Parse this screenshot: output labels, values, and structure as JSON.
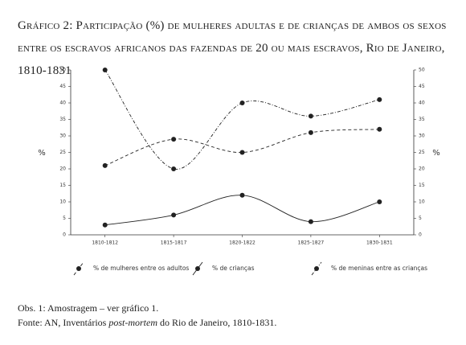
{
  "chart_data": {
    "type": "line",
    "title": "Gráfico 2: Participação (%) de mulheres adultas e de crianças de ambos os sexos entre os escravos africanos das fazendas de 20 ou mais escravos, Rio de Janeiro, 1810-1831",
    "ylabel": "%",
    "y2label": "%",
    "categories": [
      "1810-1812",
      "1815-1817",
      "1820-1822",
      "1825-1827",
      "1830-1831"
    ],
    "series": [
      {
        "name": "% de mulheres entre os adultos",
        "color": "#222222",
        "dash": "4 3",
        "values": [
          21,
          29,
          25,
          31,
          32
        ]
      },
      {
        "name": "% de crianças",
        "color": "#222222",
        "dash": "none",
        "values": [
          3,
          6,
          12,
          4,
          10
        ]
      },
      {
        "name": "% de meninas entre as crianças",
        "color": "#222222",
        "dash": "4 2 1 2",
        "values": [
          50,
          20,
          40,
          36,
          41
        ]
      }
    ],
    "ylim": [
      0,
      50
    ],
    "yticks": [
      0,
      5,
      10,
      15,
      20,
      25,
      30,
      35,
      40,
      45,
      50
    ],
    "notes": {
      "obs": "Obs. 1: Amostragem – ver gráfico 1.",
      "source": [
        "Fonte: AN, Inventários ",
        "post-mortem",
        " do Rio de Janeiro, 1810-1831."
      ]
    }
  }
}
